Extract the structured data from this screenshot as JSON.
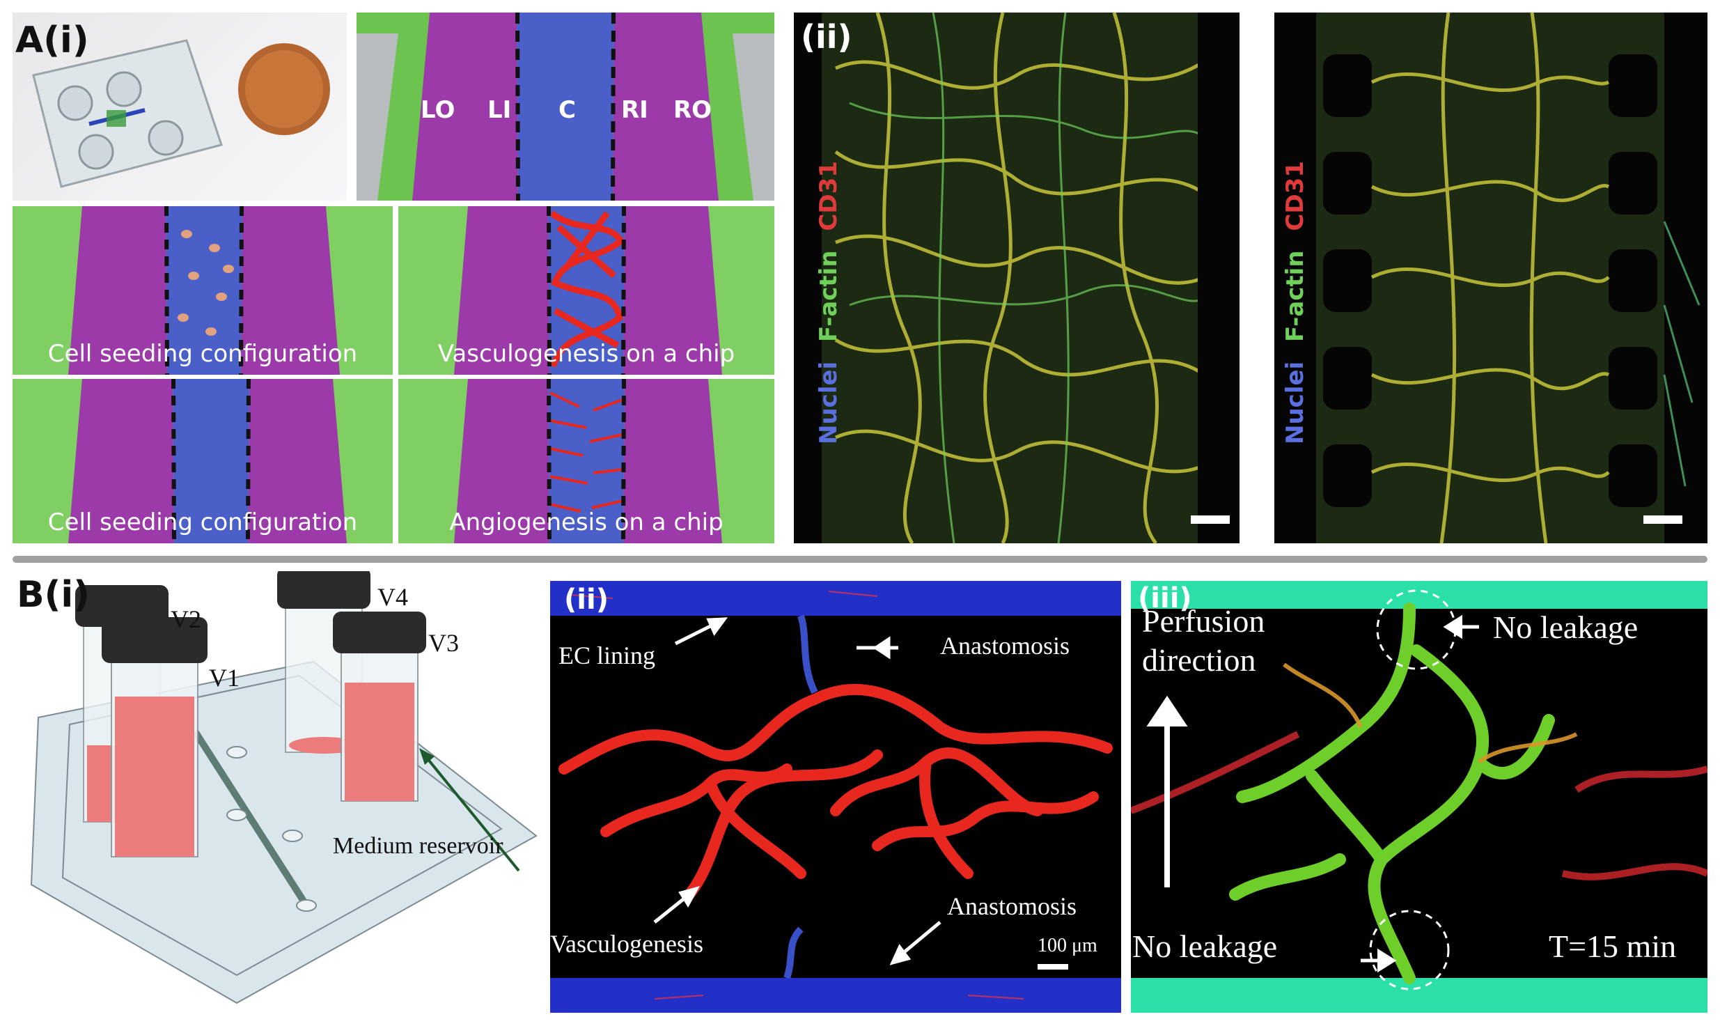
{
  "panelA": {
    "label_main": "A(i)",
    "label_ii": "(ii)",
    "channels": [
      "LO",
      "LI",
      "C",
      "RI",
      "RO"
    ],
    "captions": [
      "Cell seeding configuration",
      "Vasculogenesis on a chip",
      "Cell seeding configuration",
      "Angiogenesis on a chip"
    ],
    "stains_left": [
      "Nuclei",
      "F-actin",
      "CD31"
    ],
    "stains_right": [
      "Nuclei",
      "F-actin",
      "CD31"
    ],
    "stain_colors": {
      "Nuclei": "#5a6fe0",
      "F-actin": "#6fd05a",
      "CD31": "#e03a3a"
    }
  },
  "panelB": {
    "label_main": "B(i)",
    "vials": [
      "V1",
      "V2",
      "V3",
      "V4"
    ],
    "reservoir_label": "Medium reservoir",
    "label_ii": "(ii)",
    "label_iii": "(iii)",
    "ii_annotations": {
      "ec_lining": "EC lining",
      "anastomosis_top": "Anastomosis",
      "anastomosis_bottom": "Anastomosis",
      "vasculogenesis": "Vasculogenesis",
      "scale": "100 μm"
    },
    "iii_annotations": {
      "perfusion": [
        "Perfusion",
        "direction"
      ],
      "no_leakage_top": "No leakage",
      "no_leakage_bottom": "No leakage",
      "time": "T=15 min"
    }
  },
  "colors": {
    "green_channel": "#6dc34f",
    "purple_channel": "#9b3aa8",
    "blue_channel": "#4a5fc8",
    "vessel_red": "#e8281e",
    "divider": "#a0a0a0"
  }
}
